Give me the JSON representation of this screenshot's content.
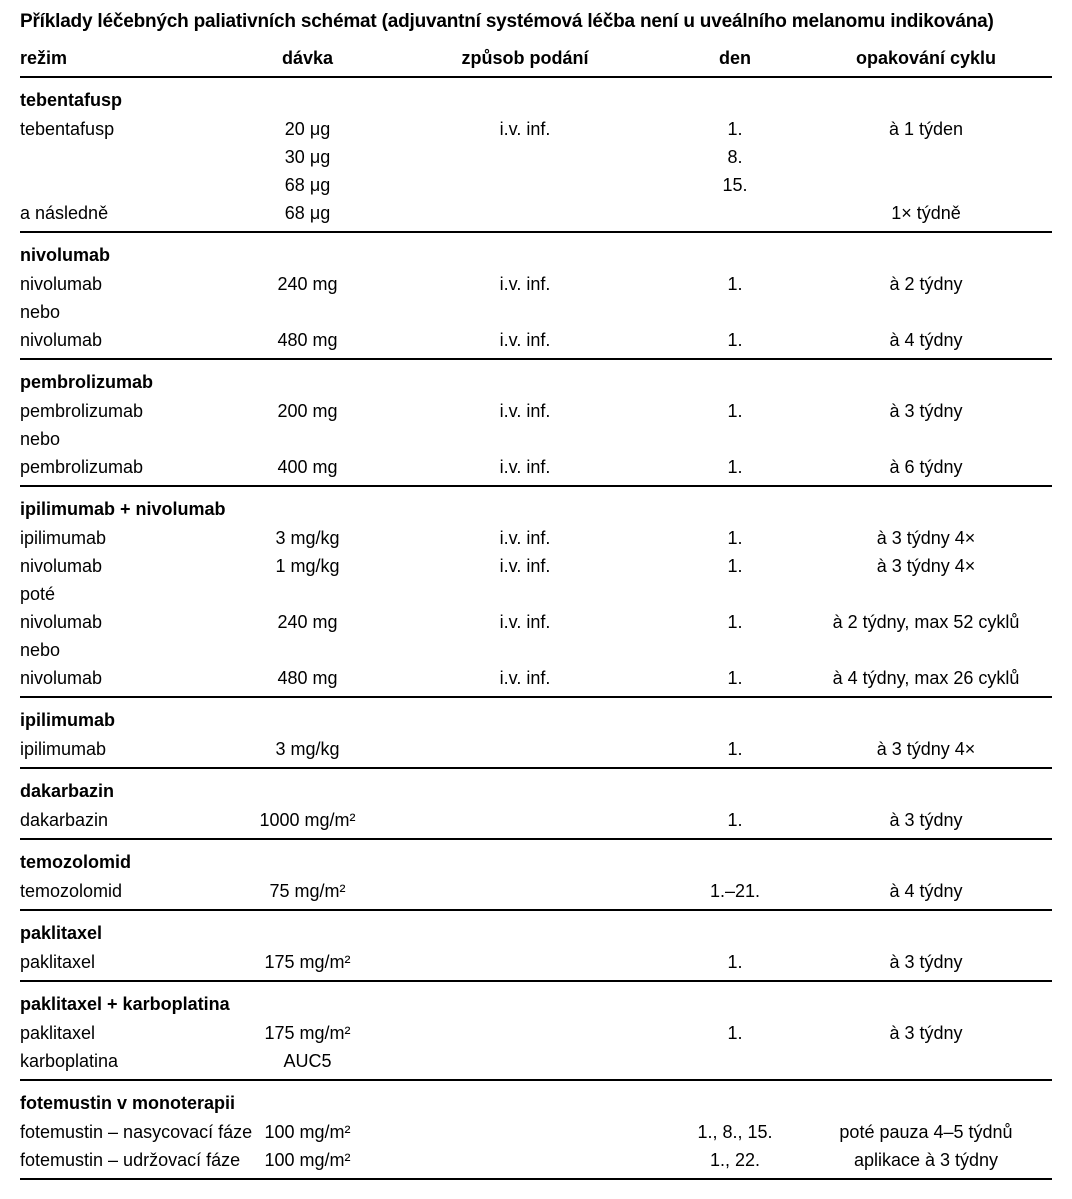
{
  "title": "Příklady léčebných paliativních schémat (adjuvantní systémová léčba není u uveálního melanomu indikována)",
  "table": {
    "columns": [
      "režim",
      "dávka",
      "způsob podání",
      "den",
      "opakování cyklu"
    ],
    "sections": [
      {
        "group": "tebentafusp",
        "rows": [
          [
            "tebentafusp",
            "20 μg",
            "i.v. inf.",
            "1.",
            "à 1 týden"
          ],
          [
            "",
            "30 μg",
            "",
            "8.",
            ""
          ],
          [
            "",
            "68 μg",
            "",
            "15.",
            ""
          ],
          [
            "a následně",
            "68 μg",
            "",
            "",
            "1× týdně"
          ]
        ]
      },
      {
        "group": "nivolumab",
        "rows": [
          [
            "nivolumab",
            "240 mg",
            "i.v. inf.",
            "1.",
            "à 2 týdny"
          ],
          [
            "nebo",
            "",
            "",
            "",
            ""
          ],
          [
            "nivolumab",
            "480 mg",
            "i.v. inf.",
            "1.",
            "à 4 týdny"
          ]
        ]
      },
      {
        "group": "pembrolizumab",
        "rows": [
          [
            "pembrolizumab",
            "200 mg",
            "i.v. inf.",
            "1.",
            "à 3 týdny"
          ],
          [
            "nebo",
            "",
            "",
            "",
            ""
          ],
          [
            "pembrolizumab",
            "400 mg",
            "i.v. inf.",
            "1.",
            "à 6 týdny"
          ]
        ]
      },
      {
        "group": "ipilimumab + nivolumab",
        "rows": [
          [
            "ipilimumab",
            "3 mg/kg",
            "i.v. inf.",
            "1.",
            "à 3 týdny 4×"
          ],
          [
            "nivolumab",
            "1 mg/kg",
            "i.v. inf.",
            "1.",
            "à 3 týdny 4×"
          ],
          [
            "poté",
            "",
            "",
            "",
            ""
          ],
          [
            "nivolumab",
            "240 mg",
            "i.v. inf.",
            "1.",
            "à 2 týdny, max 52 cyklů"
          ],
          [
            "nebo",
            "",
            "",
            "",
            ""
          ],
          [
            "nivolumab",
            "480 mg",
            "i.v. inf.",
            "1.",
            "à 4 týdny, max 26 cyklů"
          ]
        ]
      },
      {
        "group": "ipilimumab",
        "rows": [
          [
            "ipilimumab",
            "3 mg/kg",
            "",
            "1.",
            "à 3 týdny 4×"
          ]
        ]
      },
      {
        "group": "dakarbazin",
        "rows": [
          [
            "dakarbazin",
            "1000 mg/m²",
            "",
            "1.",
            "à 3 týdny"
          ]
        ]
      },
      {
        "group": "temozolomid",
        "rows": [
          [
            "temozolomid",
            "75 mg/m²",
            "",
            "1.–21.",
            "à 4 týdny"
          ]
        ]
      },
      {
        "group": "paklitaxel",
        "rows": [
          [
            "paklitaxel",
            "175 mg/m²",
            "",
            "1.",
            "à 3 týdny"
          ]
        ]
      },
      {
        "group": "paklitaxel + karboplatina",
        "rows": [
          [
            "paklitaxel",
            "175 mg/m²",
            "",
            "1.",
            "à 3 týdny"
          ],
          [
            "karboplatina",
            "AUC5",
            "",
            "",
            ""
          ]
        ]
      },
      {
        "group": "fotemustin v monoterapii",
        "rows": [
          [
            "fotemustin – nasycovací fáze",
            "100 mg/m²",
            "",
            "1., 8., 15.",
            "poté pauza 4–5 týdnů"
          ],
          [
            "fotemustin – udržovací fáze",
            "100 mg/m²",
            "",
            "1., 22.",
            "aplikace à 3 týdny"
          ]
        ]
      }
    ]
  }
}
